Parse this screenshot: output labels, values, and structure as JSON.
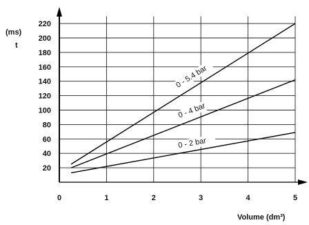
{
  "chart_data": {
    "type": "line",
    "y_unit": "(ms)",
    "y_symbol": "t",
    "xlabel": "Volume (dm³)",
    "xlim": [
      0,
      5
    ],
    "ylim": [
      0,
      230
    ],
    "x_ticks": [
      "0",
      "1",
      "2",
      "3",
      "4",
      "5"
    ],
    "y_ticks": [
      "20",
      "40",
      "60",
      "80",
      "100",
      "120",
      "140",
      "160",
      "180",
      "200",
      "220"
    ],
    "grid": true,
    "series": [
      {
        "name": "0 - 5.4 bar",
        "x": [
          0.25,
          5
        ],
        "y": [
          25,
          220
        ]
      },
      {
        "name": "0 - 4 bar",
        "x": [
          0.25,
          5
        ],
        "y": [
          20,
          142
        ]
      },
      {
        "name": "0 - 2 bar",
        "x": [
          0.25,
          5
        ],
        "y": [
          13,
          69
        ]
      }
    ]
  }
}
